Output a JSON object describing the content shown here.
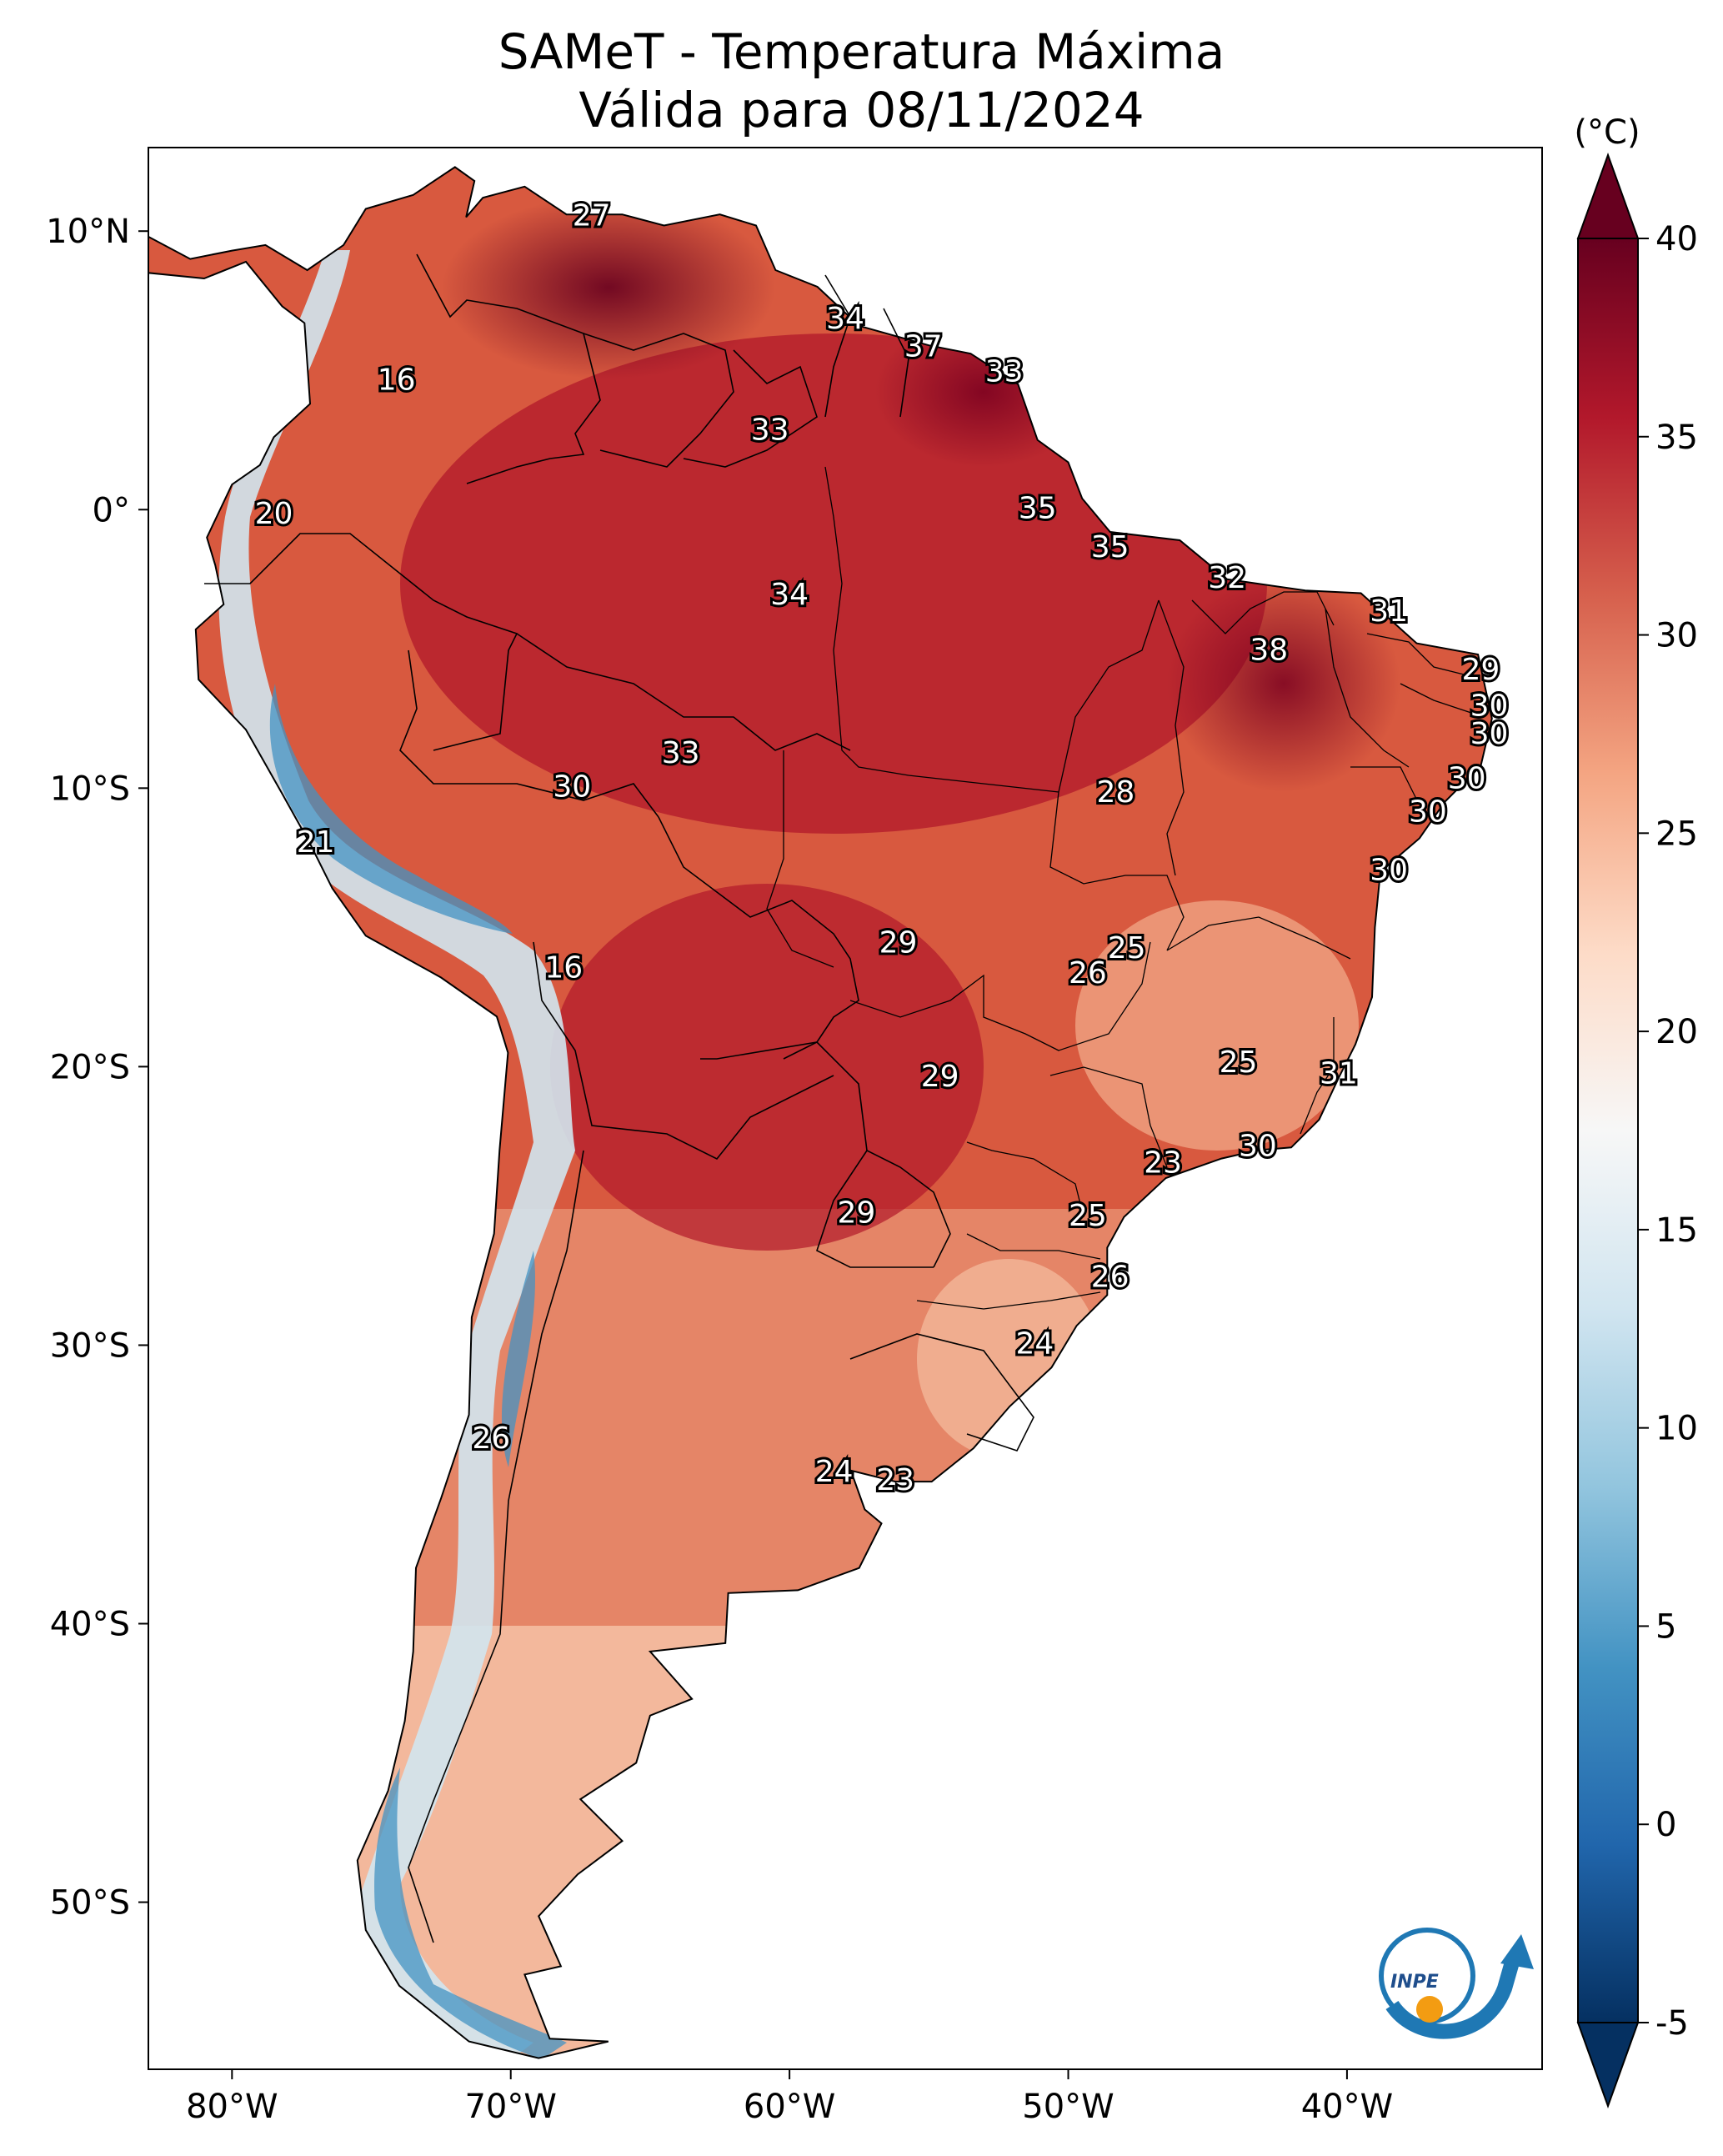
{
  "title": "SAMeT - Temperatura Máxima",
  "subtitle": "Válida para 08/11/2024",
  "colorbar": {
    "unit": "(°C)",
    "ticks": [
      {
        "label": "40",
        "value": 40
      },
      {
        "label": "35",
        "value": 35
      },
      {
        "label": "30",
        "value": 30
      },
      {
        "label": "25",
        "value": 25
      },
      {
        "label": "20",
        "value": 20
      },
      {
        "label": "15",
        "value": 15
      },
      {
        "label": "10",
        "value": 10
      },
      {
        "label": "5",
        "value": 5
      },
      {
        "label": "0",
        "value": 0
      },
      {
        "label": "-5",
        "value": -5
      }
    ],
    "range": [
      -5,
      40
    ],
    "extend": "both",
    "colors": [
      "#053061",
      "#2166ac",
      "#4393c3",
      "#92c5de",
      "#d1e5f0",
      "#f7f7f7",
      "#fddbc7",
      "#f4a582",
      "#d6604d",
      "#b2182b",
      "#67001f"
    ]
  },
  "lat_ticks": [
    {
      "label": "10°N",
      "value": 10
    },
    {
      "label": "0°",
      "value": 0
    },
    {
      "label": "10°S",
      "value": -10
    },
    {
      "label": "20°S",
      "value": -20
    },
    {
      "label": "30°S",
      "value": -30
    },
    {
      "label": "40°S",
      "value": -40
    },
    {
      "label": "50°S",
      "value": -50
    }
  ],
  "lon_ticks": [
    {
      "label": "80°W",
      "value": -80
    },
    {
      "label": "70°W",
      "value": -70
    },
    {
      "label": "60°W",
      "value": -60
    },
    {
      "label": "50°W",
      "value": -50
    },
    {
      "label": "40°W",
      "value": -40
    }
  ],
  "extent": {
    "lon": [
      -83,
      -33
    ],
    "lat": [
      -56,
      13
    ]
  },
  "capital_labels": [
    {
      "text": "27",
      "lon": -67.1,
      "lat": 10.5
    },
    {
      "text": "16",
      "lon": -74.1,
      "lat": 4.6
    },
    {
      "text": "34",
      "lon": -58.0,
      "lat": 6.8
    },
    {
      "text": "37",
      "lon": -55.2,
      "lat": 5.8
    },
    {
      "text": "33",
      "lon": -52.3,
      "lat": 4.9
    },
    {
      "text": "33",
      "lon": -60.7,
      "lat": 2.8
    },
    {
      "text": "20",
      "lon": -78.5,
      "lat": -0.2
    },
    {
      "text": "35",
      "lon": -51.1,
      "lat": 0.0
    },
    {
      "text": "35",
      "lon": -48.5,
      "lat": -1.4
    },
    {
      "text": "34",
      "lon": -60.0,
      "lat": -3.1
    },
    {
      "text": "32",
      "lon": -44.3,
      "lat": -2.5
    },
    {
      "text": "31",
      "lon": -38.5,
      "lat": -3.7
    },
    {
      "text": "38",
      "lon": -42.8,
      "lat": -5.1
    },
    {
      "text": "29",
      "lon": -35.2,
      "lat": -5.8
    },
    {
      "text": "30",
      "lon": -34.9,
      "lat": -7.1
    },
    {
      "text": "30",
      "lon": -34.9,
      "lat": -8.1
    },
    {
      "text": "33",
      "lon": -63.9,
      "lat": -8.8
    },
    {
      "text": "30",
      "lon": -67.8,
      "lat": -10.0
    },
    {
      "text": "30",
      "lon": -35.7,
      "lat": -9.7
    },
    {
      "text": "28",
      "lon": -48.3,
      "lat": -10.2
    },
    {
      "text": "30",
      "lon": -37.1,
      "lat": -10.9
    },
    {
      "text": "21",
      "lon": -77.0,
      "lat": -12.0
    },
    {
      "text": "30",
      "lon": -38.5,
      "lat": -13.0
    },
    {
      "text": "29",
      "lon": -56.1,
      "lat": -15.6
    },
    {
      "text": "25",
      "lon": -47.9,
      "lat": -15.8
    },
    {
      "text": "26",
      "lon": -49.3,
      "lat": -16.7
    },
    {
      "text": "16",
      "lon": -68.1,
      "lat": -16.5
    },
    {
      "text": "25",
      "lon": -43.9,
      "lat": -19.9
    },
    {
      "text": "31",
      "lon": -40.3,
      "lat": -20.3
    },
    {
      "text": "29",
      "lon": -54.6,
      "lat": -20.4
    },
    {
      "text": "30",
      "lon": -43.2,
      "lat": -22.9
    },
    {
      "text": "23",
      "lon": -46.6,
      "lat": -23.5
    },
    {
      "text": "29",
      "lon": -57.6,
      "lat": -25.3
    },
    {
      "text": "25",
      "lon": -49.3,
      "lat": -25.4
    },
    {
      "text": "26",
      "lon": -48.5,
      "lat": -27.6
    },
    {
      "text": "24",
      "lon": -51.2,
      "lat": -30.0
    },
    {
      "text": "26",
      "lon": -70.7,
      "lat": -33.4
    },
    {
      "text": "24",
      "lon": -58.4,
      "lat": -34.6
    },
    {
      "text": "23",
      "lon": -56.2,
      "lat": -34.9
    }
  ],
  "logo": {
    "text": "INPE",
    "name": "inpe-logo"
  }
}
